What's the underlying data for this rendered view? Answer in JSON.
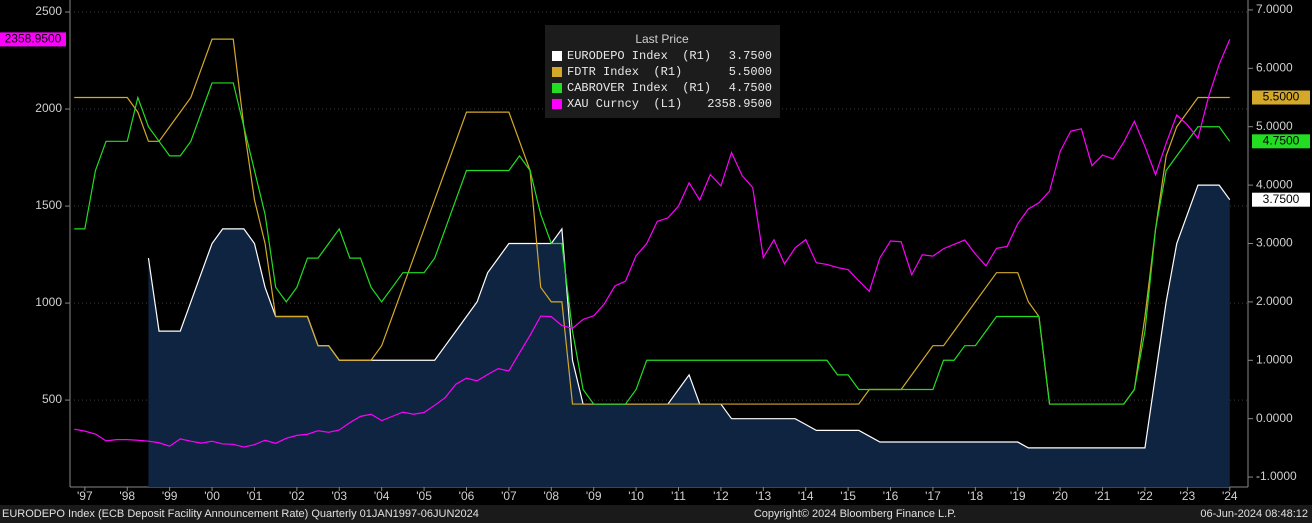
{
  "chart_data": {
    "type": "line",
    "legend_title": "Last Price",
    "caption": "EURODEPO Index (ECB Deposit Facility Announcement Rate)  Quarterly 01JAN1997-06JUN2024",
    "copyright": "Copyright© 2024 Bloomberg Finance L.P.",
    "timestamp": "06-Jun-2024 08:48:12",
    "grid": true,
    "xlim": [
      1997.15,
      2024.93
    ],
    "xticks": [
      {
        "value": 1997.5,
        "label": "'97"
      },
      {
        "value": 1998.5,
        "label": "'98"
      },
      {
        "value": 1999.5,
        "label": "'99"
      },
      {
        "value": 2000.5,
        "label": "'00"
      },
      {
        "value": 2001.5,
        "label": "'01"
      },
      {
        "value": 2002.5,
        "label": "'02"
      },
      {
        "value": 2003.5,
        "label": "'03"
      },
      {
        "value": 2004.5,
        "label": "'04"
      },
      {
        "value": 2005.5,
        "label": "'05"
      },
      {
        "value": 2006.5,
        "label": "'06"
      },
      {
        "value": 2007.5,
        "label": "'07"
      },
      {
        "value": 2008.5,
        "label": "'08"
      },
      {
        "value": 2009.5,
        "label": "'09"
      },
      {
        "value": 2010.5,
        "label": "'10"
      },
      {
        "value": 2011.5,
        "label": "'11"
      },
      {
        "value": 2012.5,
        "label": "'12"
      },
      {
        "value": 2013.5,
        "label": "'13"
      },
      {
        "value": 2014.5,
        "label": "'14"
      },
      {
        "value": 2015.5,
        "label": "'15"
      },
      {
        "value": 2016.5,
        "label": "'16"
      },
      {
        "value": 2017.5,
        "label": "'17"
      },
      {
        "value": 2018.5,
        "label": "'18"
      },
      {
        "value": 2019.5,
        "label": "'19"
      },
      {
        "value": 2020.5,
        "label": "'20"
      },
      {
        "value": 2021.5,
        "label": "'21"
      },
      {
        "value": 2022.5,
        "label": "'22"
      },
      {
        "value": 2023.5,
        "label": "'23"
      },
      {
        "value": 2024.5,
        "label": "'24"
      }
    ],
    "ylim": [
      52,
      2562
    ],
    "yticks": [
      500,
      1000,
      1500,
      2000,
      2500
    ],
    "y2lim": [
      -1.17,
      7.17
    ],
    "y2ticks": [
      {
        "value": -1,
        "label": "-1.0000"
      },
      {
        "value": 0,
        "label": "0.0000"
      },
      {
        "value": 1,
        "label": "1.0000"
      },
      {
        "value": 2,
        "label": "2.0000"
      },
      {
        "value": 3,
        "label": "3.0000"
      },
      {
        "value": 4,
        "label": "4.0000"
      },
      {
        "value": 5,
        "label": "5.0000"
      },
      {
        "value": 6,
        "label": "6.0000"
      },
      {
        "value": 7,
        "label": "7.0000"
      }
    ],
    "x": [
      1997.25,
      1997.5,
      1997.75,
      1998,
      1998.25,
      1998.5,
      1998.75,
      1999,
      1999.25,
      1999.5,
      1999.75,
      2000,
      2000.25,
      2000.5,
      2000.75,
      2001,
      2001.25,
      2001.5,
      2001.75,
      2002,
      2002.25,
      2002.5,
      2002.75,
      2003,
      2003.25,
      2003.5,
      2003.75,
      2004,
      2004.25,
      2004.5,
      2004.75,
      2005,
      2005.25,
      2005.5,
      2005.75,
      2006,
      2006.25,
      2006.5,
      2006.75,
      2007,
      2007.25,
      2007.5,
      2007.75,
      2008,
      2008.25,
      2008.5,
      2008.75,
      2009,
      2009.25,
      2009.5,
      2009.75,
      2010,
      2010.25,
      2010.5,
      2010.75,
      2011,
      2011.25,
      2011.5,
      2011.75,
      2012,
      2012.25,
      2012.5,
      2012.75,
      2013,
      2013.25,
      2013.5,
      2013.75,
      2014,
      2014.25,
      2014.5,
      2014.75,
      2015,
      2015.25,
      2015.5,
      2015.75,
      2016,
      2016.25,
      2016.5,
      2016.75,
      2017,
      2017.25,
      2017.5,
      2017.75,
      2018,
      2018.25,
      2018.5,
      2018.75,
      2019,
      2019.25,
      2019.5,
      2019.75,
      2020,
      2020.25,
      2020.5,
      2020.75,
      2021,
      2021.25,
      2021.5,
      2021.75,
      2022,
      2022.25,
      2022.5,
      2022.75,
      2023,
      2023.25,
      2023.5,
      2023.75,
      2024,
      2024.25,
      2024.5
    ],
    "series": [
      {
        "name": "EURODEPO Index  (R1)",
        "color": "#ffffff",
        "fill": "#0f2440",
        "axis": "y2",
        "values": [
          null,
          null,
          null,
          null,
          null,
          null,
          null,
          2.75,
          1.5,
          1.5,
          1.5,
          2.0,
          2.5,
          3.0,
          3.25,
          3.25,
          3.25,
          3.0,
          2.25,
          1.75,
          1.75,
          1.75,
          1.75,
          1.25,
          1.25,
          1.0,
          1.0,
          1.0,
          1.0,
          1.0,
          1.0,
          1.0,
          1.0,
          1.0,
          1.0,
          1.25,
          1.5,
          1.75,
          2.0,
          2.5,
          2.75,
          3.0,
          3.0,
          3.0,
          3.0,
          3.0,
          3.25,
          1.0,
          0.25,
          0.25,
          0.25,
          0.25,
          0.25,
          0.25,
          0.25,
          0.25,
          0.25,
          0.5,
          0.75,
          0.25,
          0.25,
          0.25,
          0,
          0,
          0,
          0,
          0,
          0,
          0,
          -0.1,
          -0.2,
          -0.2,
          -0.2,
          -0.2,
          -0.2,
          -0.3,
          -0.4,
          -0.4,
          -0.4,
          -0.4,
          -0.4,
          -0.4,
          -0.4,
          -0.4,
          -0.4,
          -0.4,
          -0.4,
          -0.4,
          -0.4,
          -0.4,
          -0.5,
          -0.5,
          -0.5,
          -0.5,
          -0.5,
          -0.5,
          -0.5,
          -0.5,
          -0.5,
          -0.5,
          -0.5,
          -0.5,
          0.75,
          2.0,
          3.0,
          3.5,
          4.0,
          4.0,
          4.0,
          3.75
        ],
        "value_labels": [
          null,
          null,
          null,
          null,
          null,
          null,
          null,
          null,
          null,
          null,
          null,
          null,
          null,
          null,
          null,
          null,
          null,
          null,
          null,
          null,
          null,
          null,
          null,
          null,
          null,
          null,
          null,
          null,
          null,
          null,
          null,
          null,
          null,
          null,
          null,
          null,
          null,
          null,
          null,
          null,
          null,
          null,
          null,
          null,
          null,
          null,
          null,
          null,
          null,
          null,
          null,
          null,
          null,
          null,
          null,
          null,
          null,
          null,
          null,
          null,
          null,
          null,
          null,
          null,
          null,
          null,
          null,
          null,
          null,
          null,
          null,
          null,
          null,
          null,
          null,
          null,
          null,
          null,
          null,
          null,
          null,
          null,
          null,
          null,
          null,
          null,
          null,
          null,
          null,
          null,
          null,
          null,
          null,
          null,
          null,
          null,
          null,
          null,
          null,
          null,
          null,
          null,
          null,
          null,
          null,
          null,
          null,
          null,
          null,
          "3.7500"
        ]
      },
      {
        "name": "FDTR Index  (R1)",
        "color": "#d4a92a",
        "axis": "y2",
        "values": [
          5.5,
          5.5,
          5.5,
          5.5,
          5.5,
          5.5,
          5.25,
          4.75,
          4.75,
          5.0,
          5.25,
          5.5,
          6.0,
          6.5,
          6.5,
          6.5,
          5.0,
          3.75,
          3.0,
          1.75,
          1.75,
          1.75,
          1.75,
          1.25,
          1.25,
          1.0,
          1.0,
          1.0,
          1.0,
          1.25,
          1.75,
          2.25,
          2.75,
          3.25,
          3.75,
          4.25,
          4.75,
          5.25,
          5.25,
          5.25,
          5.25,
          5.25,
          4.75,
          4.25,
          2.25,
          2.0,
          2.0,
          0.25,
          0.25,
          0.25,
          0.25,
          0.25,
          0.25,
          0.25,
          0.25,
          0.25,
          0.25,
          0.25,
          0.25,
          0.25,
          0.25,
          0.25,
          0.25,
          0.25,
          0.25,
          0.25,
          0.25,
          0.25,
          0.25,
          0.25,
          0.25,
          0.25,
          0.25,
          0.25,
          0.25,
          0.5,
          0.5,
          0.5,
          0.5,
          0.75,
          1.0,
          1.25,
          1.25,
          1.5,
          1.75,
          2.0,
          2.25,
          2.5,
          2.5,
          2.5,
          2.0,
          1.75,
          0.25,
          0.25,
          0.25,
          0.25,
          0.25,
          0.25,
          0.25,
          0.25,
          0.5,
          1.75,
          3.25,
          4.5,
          5.0,
          5.25,
          5.5,
          5.5,
          5.5,
          5.5
        ],
        "value_labels": [
          null,
          null,
          null,
          null,
          null,
          null,
          null,
          null,
          null,
          null,
          null,
          null,
          null,
          null,
          null,
          null,
          null,
          null,
          null,
          null,
          null,
          null,
          null,
          null,
          null,
          null,
          null,
          null,
          null,
          null,
          null,
          null,
          null,
          null,
          null,
          null,
          null,
          null,
          null,
          null,
          null,
          null,
          null,
          null,
          null,
          null,
          null,
          null,
          null,
          null,
          null,
          null,
          null,
          null,
          null,
          null,
          null,
          null,
          null,
          null,
          null,
          null,
          null,
          null,
          null,
          null,
          null,
          null,
          null,
          null,
          null,
          null,
          null,
          null,
          null,
          null,
          null,
          null,
          null,
          null,
          null,
          null,
          null,
          null,
          null,
          null,
          null,
          null,
          null,
          null,
          null,
          null,
          null,
          null,
          null,
          null,
          null,
          null,
          null,
          null,
          null,
          null,
          null,
          null,
          null,
          null,
          null,
          null,
          null,
          "5.5000"
        ]
      },
      {
        "name": "CABROVER Index  (R1)",
        "color": "#22dd22",
        "axis": "y2",
        "values": [
          3.25,
          3.25,
          4.25,
          4.75,
          4.75,
          4.75,
          5.5,
          5.0,
          4.75,
          4.5,
          4.5,
          4.75,
          5.25,
          5.75,
          5.75,
          5.75,
          5.0,
          4.25,
          3.5,
          2.25,
          2.0,
          2.25,
          2.75,
          2.75,
          3.0,
          3.25,
          2.75,
          2.75,
          2.25,
          2.0,
          2.25,
          2.5,
          2.5,
          2.5,
          2.75,
          3.25,
          3.75,
          4.25,
          4.25,
          4.25,
          4.25,
          4.25,
          4.5,
          4.25,
          3.5,
          3.0,
          3.0,
          1.5,
          0.5,
          0.25,
          0.25,
          0.25,
          0.25,
          0.5,
          1.0,
          1.0,
          1.0,
          1.0,
          1.0,
          1.0,
          1.0,
          1.0,
          1.0,
          1.0,
          1.0,
          1.0,
          1.0,
          1.0,
          1.0,
          1.0,
          1.0,
          1.0,
          0.75,
          0.75,
          0.5,
          0.5,
          0.5,
          0.5,
          0.5,
          0.5,
          0.5,
          0.5,
          1.0,
          1.0,
          1.25,
          1.25,
          1.5,
          1.75,
          1.75,
          1.75,
          1.75,
          1.75,
          0.25,
          0.25,
          0.25,
          0.25,
          0.25,
          0.25,
          0.25,
          0.25,
          0.5,
          1.5,
          3.25,
          4.25,
          4.5,
          4.75,
          5.0,
          5.0,
          5.0,
          4.75
        ],
        "value_labels": [
          null,
          null,
          null,
          null,
          null,
          null,
          null,
          null,
          null,
          null,
          null,
          null,
          null,
          null,
          null,
          null,
          null,
          null,
          null,
          null,
          null,
          null,
          null,
          null,
          null,
          null,
          null,
          null,
          null,
          null,
          null,
          null,
          null,
          null,
          null,
          null,
          null,
          null,
          null,
          null,
          null,
          null,
          null,
          null,
          null,
          null,
          null,
          null,
          null,
          null,
          null,
          null,
          null,
          null,
          null,
          null,
          null,
          null,
          null,
          null,
          null,
          null,
          null,
          null,
          null,
          null,
          null,
          null,
          null,
          null,
          null,
          null,
          null,
          null,
          null,
          null,
          null,
          null,
          null,
          null,
          null,
          null,
          null,
          null,
          null,
          null,
          null,
          null,
          null,
          null,
          null,
          null,
          null,
          null,
          null,
          null,
          null,
          null,
          null,
          null,
          null,
          null,
          null,
          null,
          null,
          null,
          null,
          null,
          null,
          "4.7500"
        ]
      },
      {
        "name": "XAU Curncy  (L1)",
        "color": "#ff00ff",
        "axis": "y",
        "values": [
          350,
          340,
          325,
          290,
          296,
          296,
          293,
          288,
          280,
          262,
          300,
          288,
          278,
          288,
          274,
          272,
          258,
          270,
          293,
          277,
          303,
          318,
          324,
          342,
          334,
          346,
          384,
          416,
          427,
          394,
          416,
          438,
          427,
          436,
          473,
          513,
          582,
          613,
          599,
          632,
          662,
          650,
          743,
          834,
          933,
          930,
          884,
          870,
          916,
          934,
          996,
          1088,
          1113,
          1244,
          1307,
          1421,
          1439,
          1500,
          1620,
          1531,
          1662,
          1604,
          1776,
          1657,
          1595,
          1234,
          1326,
          1202,
          1284,
          1327,
          1208,
          1199,
          1183,
          1172,
          1115,
          1061,
          1233,
          1320,
          1316,
          1146,
          1249,
          1242,
          1280,
          1303,
          1325,
          1253,
          1192,
          1282,
          1292,
          1409,
          1485,
          1517,
          1577,
          1781,
          1886,
          1898,
          1708,
          1763,
          1743,
          1829,
          1937,
          1807,
          1661,
          1824,
          1969,
          1919,
          1849,
          2063,
          2230,
          2358.95
        ],
        "value_labels": [
          null,
          null,
          null,
          null,
          null,
          null,
          null,
          null,
          null,
          null,
          null,
          null,
          null,
          null,
          null,
          null,
          null,
          null,
          null,
          null,
          null,
          null,
          null,
          null,
          null,
          null,
          null,
          null,
          null,
          null,
          null,
          null,
          null,
          null,
          null,
          null,
          null,
          null,
          null,
          null,
          null,
          null,
          null,
          null,
          null,
          null,
          null,
          null,
          null,
          null,
          null,
          null,
          null,
          null,
          null,
          null,
          null,
          null,
          null,
          null,
          null,
          null,
          null,
          null,
          null,
          null,
          null,
          null,
          null,
          null,
          null,
          null,
          null,
          null,
          null,
          null,
          null,
          null,
          null,
          null,
          null,
          null,
          null,
          null,
          null,
          null,
          null,
          null,
          null,
          null,
          null,
          null,
          null,
          null,
          null,
          null,
          null,
          null,
          null,
          null,
          null,
          null,
          null,
          null,
          null,
          null,
          null,
          null,
          null,
          "2358.9500"
        ]
      }
    ]
  }
}
